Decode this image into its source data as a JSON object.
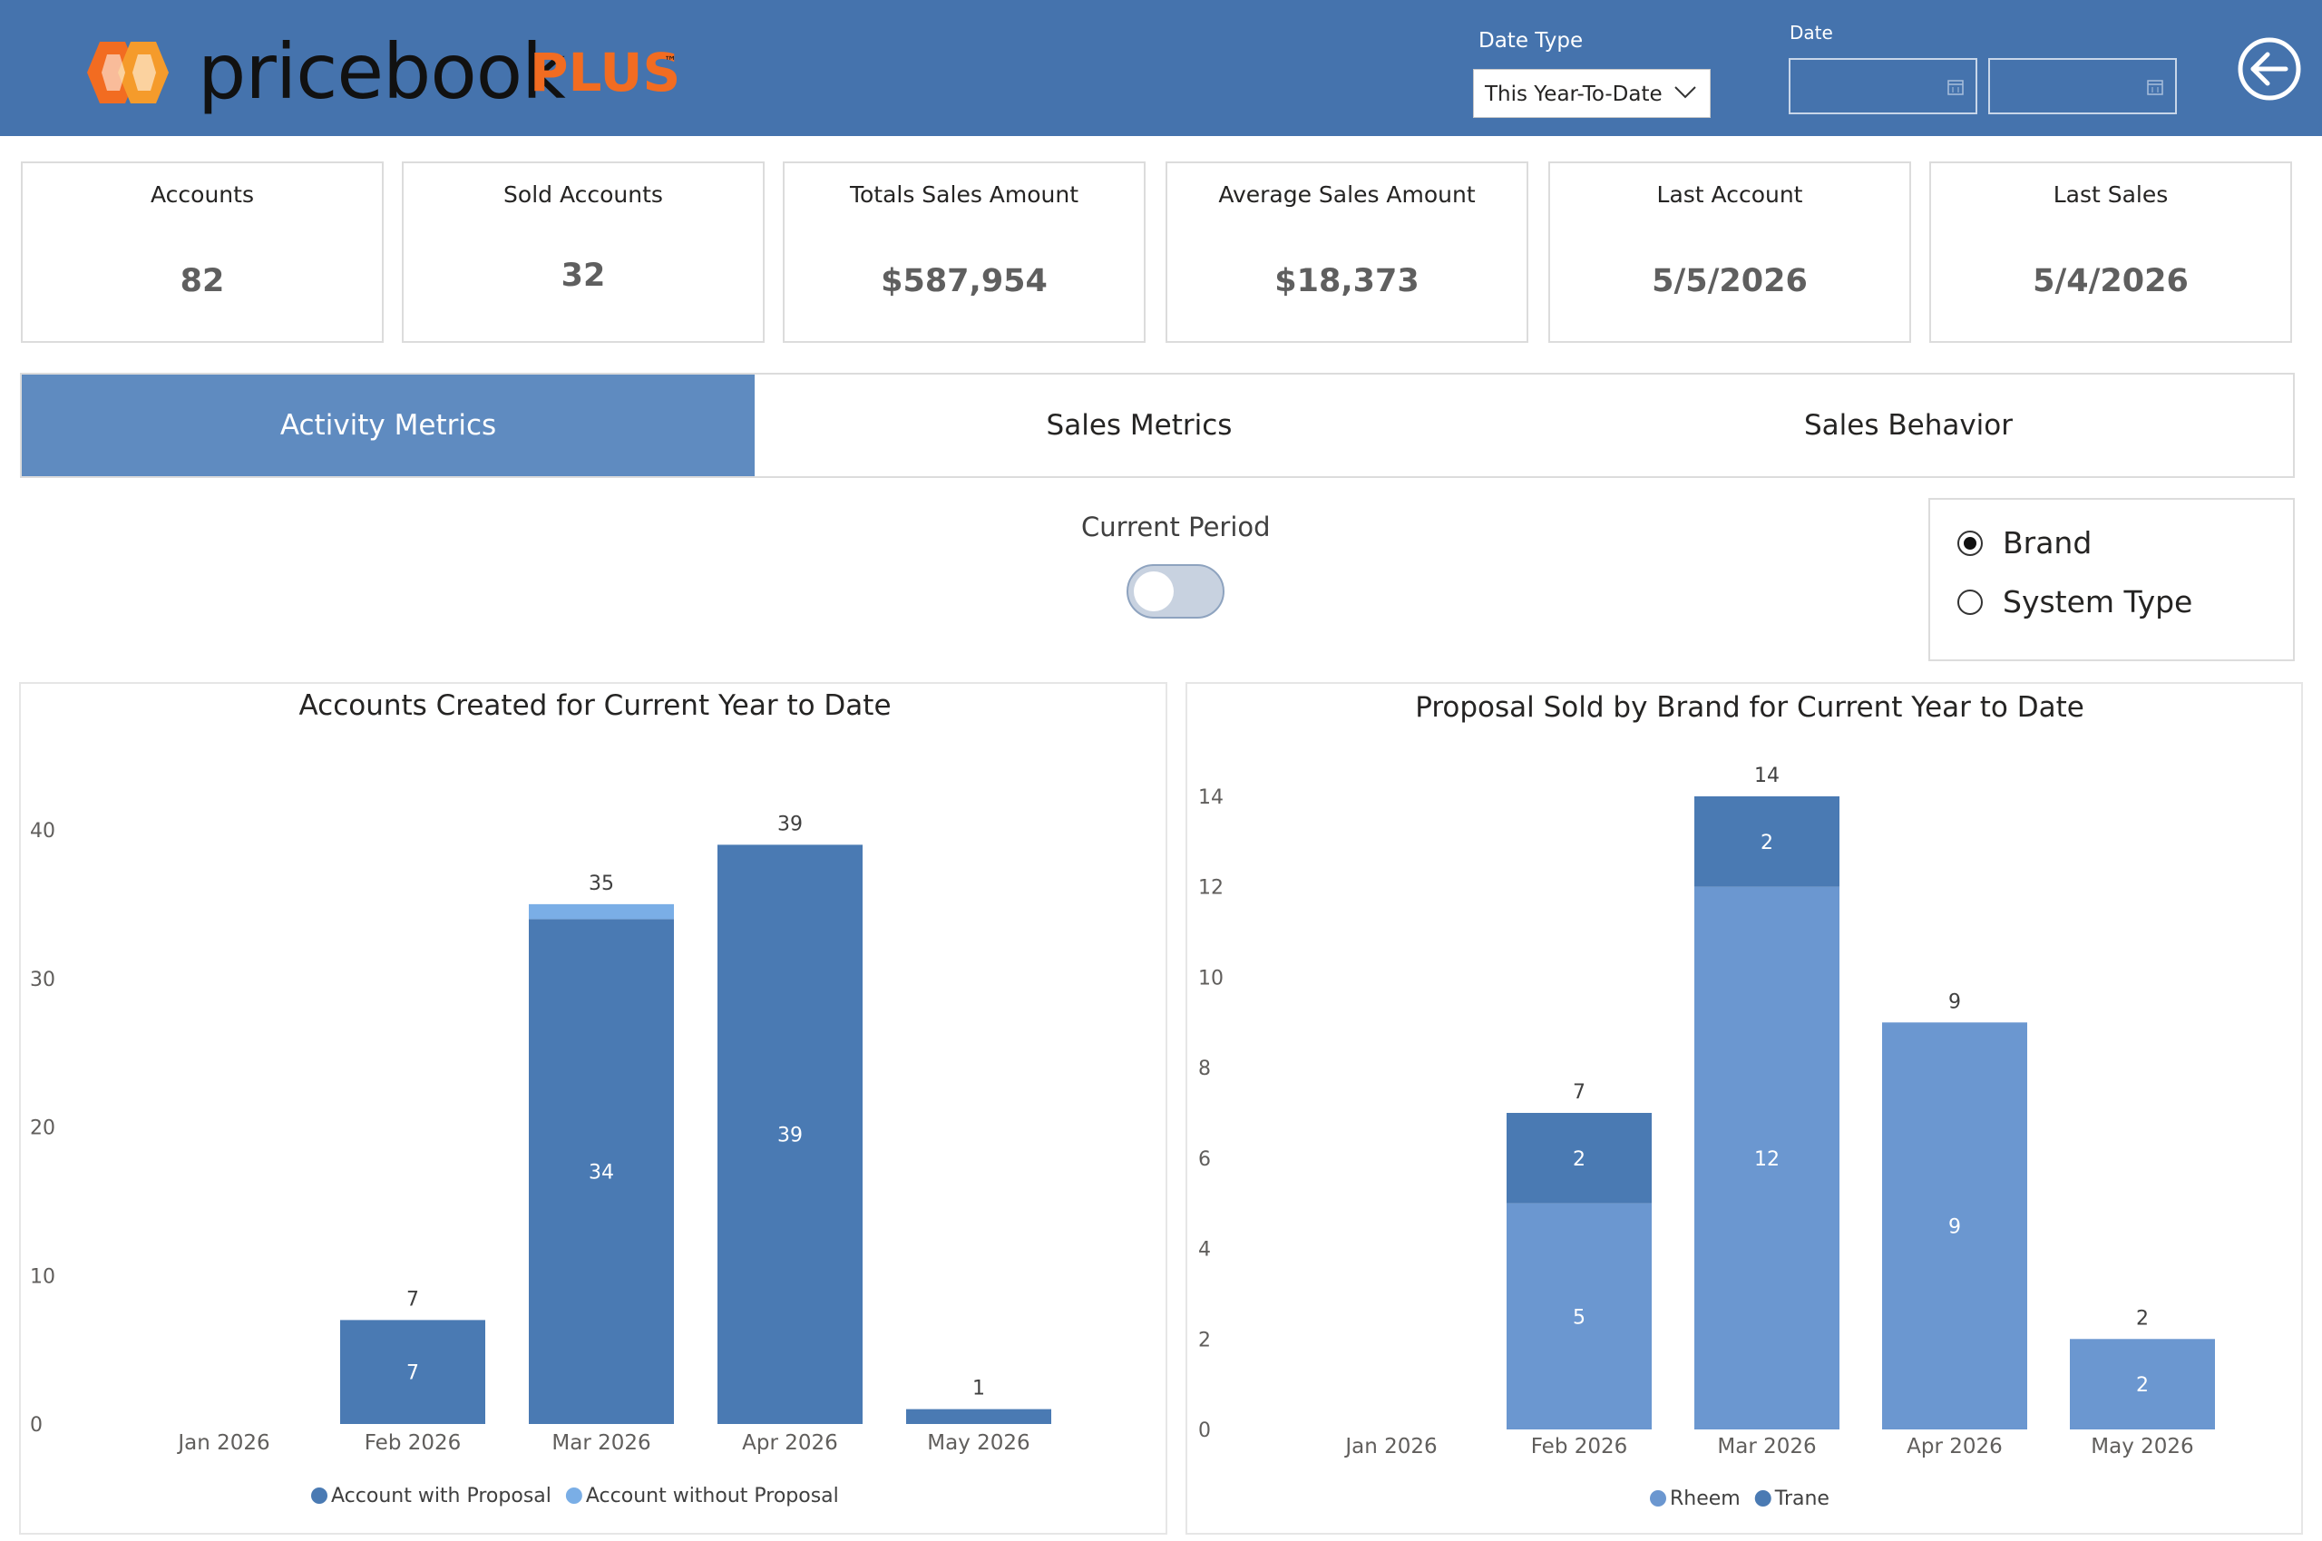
{
  "header": {
    "logo_word": "pricebook",
    "logo_plus": "PLUS",
    "logo_tm": "™",
    "date_type_label": "Date Type",
    "date_type_value": "This Year-To-Date",
    "date_label": "Date",
    "date_start": "",
    "date_end": "",
    "icons": {
      "back": "back-arrow-icon",
      "calendar": "calendar-icon",
      "dropdown": "chevron-down-icon"
    }
  },
  "kpis": [
    {
      "title": "Accounts",
      "value": "82"
    },
    {
      "title": "Sold Accounts",
      "value": "32"
    },
    {
      "title": "Totals Sales Amount",
      "value": "$587,954"
    },
    {
      "title": "Average Sales Amount",
      "value": "$18,373"
    },
    {
      "title": "Last Account",
      "value": "5/5/2026"
    },
    {
      "title": "Last Sales",
      "value": "5/4/2026"
    }
  ],
  "tabs": [
    {
      "label": "Activity Metrics",
      "active": true
    },
    {
      "label": "Sales Metrics",
      "active": false
    },
    {
      "label": "Sales Behavior",
      "active": false
    }
  ],
  "period_toggle": {
    "label": "Current Period",
    "on": false
  },
  "group_by": {
    "options": [
      "Brand",
      "System Type"
    ],
    "selected": "Brand"
  },
  "colors": {
    "header": "#4573ad",
    "tab_active": "#5f8bc0",
    "series_dark": "#4a7ab3",
    "series_light": "#6b97d0",
    "series_pale": "#7aaee6"
  },
  "chart_data": [
    {
      "type": "bar",
      "stacked": true,
      "title": "Accounts Created for Current Year to Date",
      "xlabel": "",
      "ylabel": "",
      "categories": [
        "Jan 2026",
        "Feb 2026",
        "Mar 2026",
        "Apr 2026",
        "May 2026"
      ],
      "series": [
        {
          "name": "Account with Proposal",
          "values": [
            0,
            7,
            34,
            39,
            1
          ],
          "color": "#4a7ab3"
        },
        {
          "name": "Account without Proposal",
          "values": [
            0,
            0,
            1,
            0,
            0
          ],
          "color": "#7aaee6"
        }
      ],
      "totals": [
        0,
        7,
        35,
        39,
        1
      ],
      "ylim": [
        0,
        40
      ],
      "yticks": [
        0,
        10,
        20,
        30,
        40
      ],
      "legend": "bottom"
    },
    {
      "type": "bar",
      "stacked": true,
      "title": "Proposal Sold by Brand for Current Year to Date",
      "xlabel": "",
      "ylabel": "",
      "categories": [
        "Jan 2026",
        "Feb 2026",
        "Mar 2026",
        "Apr 2026",
        "May 2026"
      ],
      "series": [
        {
          "name": "Rheem",
          "values": [
            0,
            5,
            12,
            9,
            2
          ],
          "color": "#6b97d0"
        },
        {
          "name": "Trane",
          "values": [
            0,
            2,
            2,
            0,
            0
          ],
          "color": "#4a7ab3"
        }
      ],
      "totals": [
        0,
        7,
        14,
        9,
        2
      ],
      "ylim": [
        0,
        14
      ],
      "yticks": [
        0,
        2,
        4,
        6,
        8,
        10,
        12,
        14
      ],
      "legend": "bottom"
    }
  ]
}
